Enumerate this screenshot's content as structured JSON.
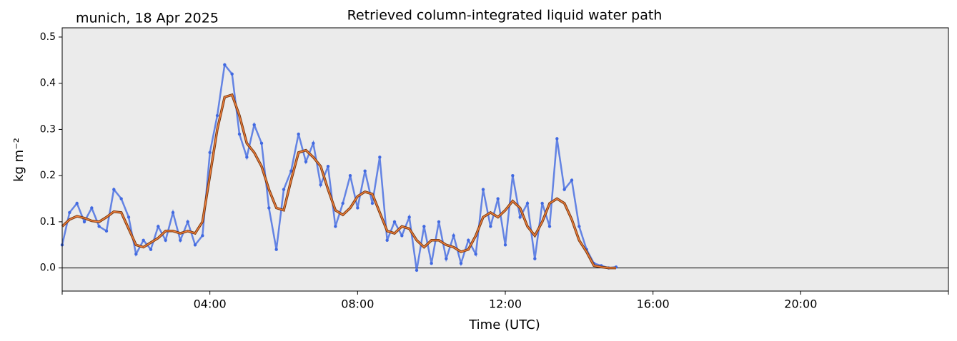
{
  "chart_data": {
    "type": "line",
    "title": "Retrieved column-integrated liquid water path",
    "subtitle": "munich, 18 Apr 2025",
    "xlabel": "Time (UTC)",
    "ylabel": "kg m⁻²",
    "x": [
      0,
      0.2,
      0.4,
      0.6,
      0.8,
      1.0,
      1.2,
      1.4,
      1.6,
      1.8,
      2.0,
      2.2,
      2.4,
      2.6,
      2.8,
      3.0,
      3.2,
      3.4,
      3.6,
      3.8,
      4.0,
      4.2,
      4.4,
      4.6,
      4.8,
      5.0,
      5.2,
      5.4,
      5.6,
      5.8,
      6.0,
      6.2,
      6.4,
      6.6,
      6.8,
      7.0,
      7.2,
      7.4,
      7.6,
      7.8,
      8.0,
      8.2,
      8.4,
      8.6,
      8.8,
      9.0,
      9.2,
      9.4,
      9.6,
      9.8,
      10.0,
      10.2,
      10.4,
      10.6,
      10.8,
      11.0,
      11.2,
      11.4,
      11.6,
      11.8,
      12.0,
      12.2,
      12.4,
      12.6,
      12.8,
      13.0,
      13.2,
      13.4,
      13.6,
      13.8,
      14.0,
      14.2,
      14.4,
      14.6,
      14.8,
      15.0
    ],
    "series": [
      {
        "color": "#4169e1",
        "marker": "dots",
        "values": [
          0.05,
          0.12,
          0.14,
          0.1,
          0.13,
          0.09,
          0.08,
          0.17,
          0.15,
          0.11,
          0.03,
          0.06,
          0.04,
          0.09,
          0.06,
          0.12,
          0.06,
          0.1,
          0.05,
          0.07,
          0.25,
          0.33,
          0.44,
          0.42,
          0.29,
          0.24,
          0.31,
          0.27,
          0.13,
          0.04,
          0.17,
          0.21,
          0.29,
          0.23,
          0.27,
          0.18,
          0.22,
          0.09,
          0.14,
          0.2,
          0.13,
          0.21,
          0.14,
          0.24,
          0.06,
          0.1,
          0.07,
          0.11,
          -0.005,
          0.09,
          0.01,
          0.1,
          0.02,
          0.07,
          0.01,
          0.06,
          0.03,
          0.17,
          0.09,
          0.15,
          0.05,
          0.2,
          0.11,
          0.14,
          0.02,
          0.14,
          0.09,
          0.28,
          0.17,
          0.19,
          0.09,
          0.04,
          0.01,
          0.005,
          0.0,
          0.002
        ]
      },
      {
        "color": "#f07f3c",
        "outline": "#7a3b12",
        "marker": "line",
        "values": [
          0.09,
          0.105,
          0.112,
          0.108,
          0.102,
          0.1,
          0.11,
          0.122,
          0.12,
          0.085,
          0.05,
          0.045,
          0.055,
          0.065,
          0.08,
          0.08,
          0.075,
          0.08,
          0.075,
          0.1,
          0.2,
          0.3,
          0.37,
          0.375,
          0.33,
          0.27,
          0.25,
          0.22,
          0.17,
          0.13,
          0.125,
          0.19,
          0.25,
          0.255,
          0.24,
          0.22,
          0.17,
          0.125,
          0.115,
          0.13,
          0.155,
          0.165,
          0.16,
          0.12,
          0.08,
          0.075,
          0.09,
          0.085,
          0.06,
          0.045,
          0.06,
          0.06,
          0.05,
          0.045,
          0.035,
          0.04,
          0.07,
          0.11,
          0.12,
          0.11,
          0.125,
          0.145,
          0.13,
          0.09,
          0.07,
          0.1,
          0.14,
          0.15,
          0.14,
          0.105,
          0.06,
          0.035,
          0.005,
          0.002,
          0.0,
          0.0
        ]
      }
    ],
    "xlim": [
      0,
      24
    ],
    "xticks": [
      {
        "value": 4,
        "label": "04:00"
      },
      {
        "value": 8,
        "label": "08:00"
      },
      {
        "value": 12,
        "label": "12:00"
      },
      {
        "value": 16,
        "label": "16:00"
      },
      {
        "value": 20,
        "label": "20:00"
      }
    ],
    "ylim": [
      -0.05,
      0.52
    ],
    "yticks": [
      0.0,
      0.1,
      0.2,
      0.3,
      0.4,
      0.5
    ],
    "ytick_labels": [
      "0.0",
      "0.1",
      "0.2",
      "0.3",
      "0.4",
      "0.5"
    ],
    "hline": 0,
    "background": "#ebebeb"
  }
}
